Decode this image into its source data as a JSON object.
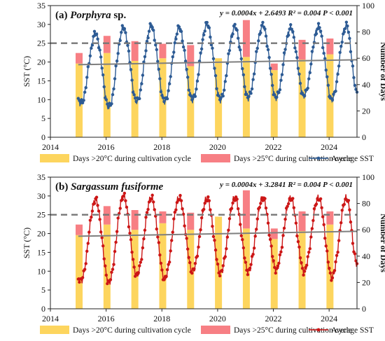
{
  "figure": {
    "left_axis_label": "SST (°C)",
    "right_axis_label": "Number of Days",
    "legend": {
      "bar20": "Days >20°C during cultivation cycle",
      "bar25": "Days >25°C during cultivation cycle",
      "line": "Average SST"
    }
  },
  "chart_data": [
    {
      "type": "bar+line",
      "panel_label": "(a)",
      "title_species": "Porphyra",
      "title_suffix": " sp.",
      "equation": "y = 0.0004x + 2.6493 R² = 0.004 P < 0.001",
      "xlim": [
        2014,
        2025
      ],
      "x_ticks": [
        "2014",
        "2016",
        "2018",
        "2020",
        "2022",
        "2024"
      ],
      "y_left_lim": [
        0,
        35
      ],
      "y_left_ticks": [
        "0",
        "5",
        "10",
        "15",
        "20",
        "25",
        "30",
        "35"
      ],
      "y_right_lim": [
        0,
        100
      ],
      "y_right_ticks": [
        "0",
        "20",
        "40",
        "60",
        "80",
        "100"
      ],
      "threshold_sst": 25,
      "trend": [
        [
          2015.0,
          19.3
        ],
        [
          2025.0,
          20.6
        ]
      ],
      "bar_years": [
        2015,
        2016,
        2017,
        2018,
        2019,
        2020,
        2021,
        2022,
        2023,
        2024
      ],
      "days_over_20": [
        56,
        64,
        58,
        60,
        54,
        60,
        61,
        51,
        59,
        63
      ],
      "days_over_25": [
        8,
        13,
        15,
        11,
        16,
        0,
        28,
        5,
        15,
        12
      ],
      "line_color": "#2d5b94",
      "sst_peaks": [
        [
          2015.62,
          27.5
        ],
        [
          2016.62,
          29.0
        ],
        [
          2017.62,
          29.5
        ],
        [
          2018.62,
          29.0
        ],
        [
          2019.62,
          30.0
        ],
        [
          2020.62,
          29.3
        ],
        [
          2021.62,
          29.7
        ],
        [
          2022.62,
          29.0
        ],
        [
          2023.62,
          29.3
        ],
        [
          2024.62,
          29.7
        ]
      ],
      "sst_troughs": [
        [
          2015.1,
          9.0
        ],
        [
          2016.1,
          8.0
        ],
        [
          2017.1,
          9.5
        ],
        [
          2018.1,
          9.5
        ],
        [
          2019.1,
          10.0
        ],
        [
          2020.1,
          10.0
        ],
        [
          2021.1,
          10.5
        ],
        [
          2022.1,
          10.5
        ],
        [
          2023.1,
          11.0
        ],
        [
          2024.1,
          10.0
        ],
        [
          2025.0,
          12.0
        ]
      ]
    },
    {
      "type": "bar+line",
      "panel_label": "(b)",
      "title_species": "Sargassum fusiforme",
      "title_suffix": "",
      "equation": "y = 0.0004x + 3.2841 R² = 0.004 P < 0.001",
      "xlim": [
        2014,
        2025
      ],
      "x_ticks": [
        "2014",
        "2016",
        "2018",
        "2020",
        "2022",
        "2024"
      ],
      "y_left_lim": [
        0,
        35
      ],
      "y_left_ticks": [
        "0",
        "5",
        "10",
        "15",
        "20",
        "25",
        "30",
        "35"
      ],
      "y_right_lim": [
        0,
        100
      ],
      "y_right_ticks": [
        "0",
        "20",
        "40",
        "60",
        "80",
        "100"
      ],
      "threshold_sst": 25,
      "trend": [
        [
          2015.0,
          19.3
        ],
        [
          2025.0,
          20.6
        ]
      ],
      "bar_years": [
        2015,
        2016,
        2017,
        2018,
        2019,
        2020,
        2021,
        2022,
        2023,
        2024
      ],
      "days_over_20": [
        56,
        64,
        60,
        65,
        60,
        70,
        61,
        53,
        59,
        64
      ],
      "days_over_25": [
        8,
        14,
        15,
        9,
        13,
        0,
        29,
        8,
        15,
        10
      ],
      "line_color": "#cc1616",
      "sst_peaks": [
        [
          2015.62,
          29.0
        ],
        [
          2016.62,
          30.0
        ],
        [
          2017.62,
          29.5
        ],
        [
          2018.62,
          29.5
        ],
        [
          2019.62,
          29.3
        ],
        [
          2020.62,
          29.5
        ],
        [
          2021.62,
          29.5
        ],
        [
          2022.62,
          29.5
        ],
        [
          2023.62,
          29.5
        ],
        [
          2024.62,
          29.5
        ]
      ],
      "sst_troughs": [
        [
          2015.1,
          7.5
        ],
        [
          2016.1,
          7.0
        ],
        [
          2017.1,
          9.0
        ],
        [
          2018.1,
          8.0
        ],
        [
          2019.1,
          10.0
        ],
        [
          2020.1,
          9.5
        ],
        [
          2021.1,
          10.0
        ],
        [
          2022.1,
          10.5
        ],
        [
          2023.1,
          10.0
        ],
        [
          2024.1,
          8.5
        ],
        [
          2025.0,
          12.0
        ]
      ]
    }
  ]
}
